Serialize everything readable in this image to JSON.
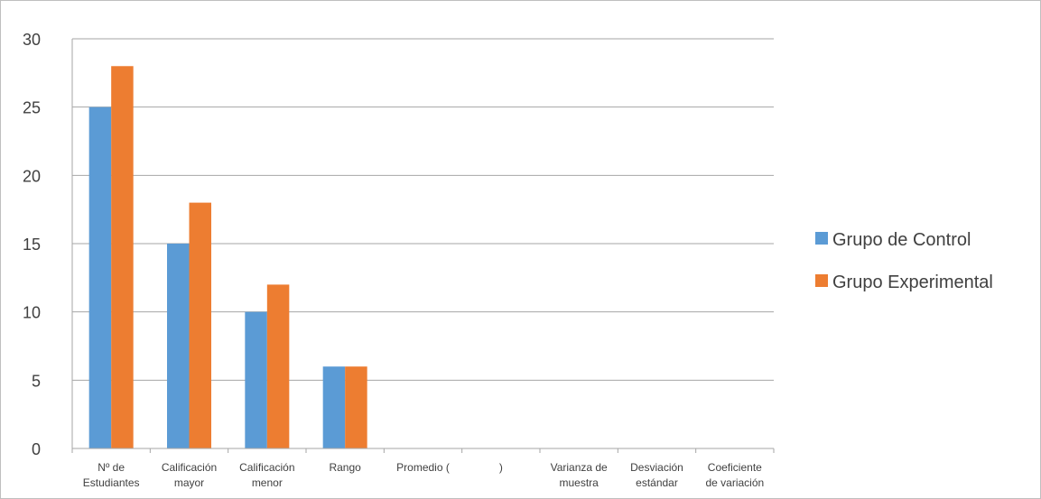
{
  "chart_data": {
    "type": "bar",
    "categories": [
      [
        "Nº de",
        "Estudiantes"
      ],
      [
        "Calificación",
        "mayor"
      ],
      [
        "Calificación",
        "menor"
      ],
      [
        "Rango"
      ],
      [
        "Promedio (",
        ""
      ],
      [
        ")"
      ],
      [
        "Varianza de",
        "muestra"
      ],
      [
        "Desviación",
        "estándar"
      ],
      [
        "Coeficiente",
        "de variación"
      ]
    ],
    "series": [
      {
        "name": "Grupo de Control",
        "color": "#5b9bd5",
        "values": [
          25,
          15,
          10,
          6,
          0,
          0,
          0,
          0,
          0
        ]
      },
      {
        "name": "Grupo Experimental",
        "color": "#ed7d31",
        "values": [
          28,
          18,
          12,
          6,
          0,
          0,
          0,
          0,
          0
        ]
      }
    ],
    "yticks": [
      "0",
      "5",
      "10",
      "15",
      "20",
      "25",
      "30"
    ],
    "ylim": [
      0,
      30
    ],
    "grid": true,
    "legend_position": "right",
    "title": "",
    "xlabel": "",
    "ylabel": ""
  }
}
